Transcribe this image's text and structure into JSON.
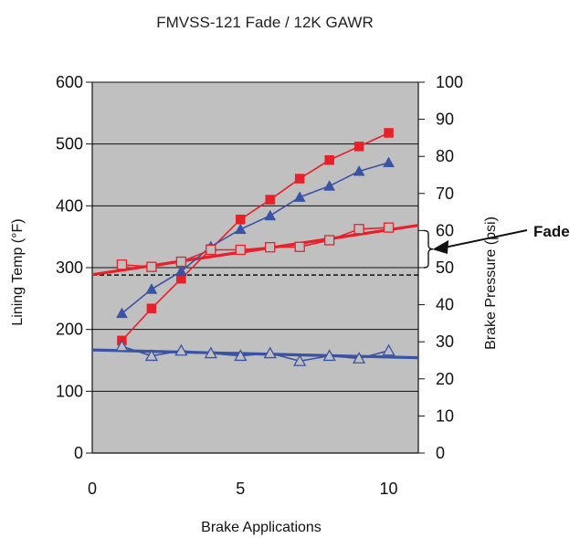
{
  "chart_data": {
    "type": "line",
    "title": "FMVSS-121 Fade / 12K GAWR",
    "xlabel": "Brake Applications",
    "ylabel_left": "Lining Temp (°F)",
    "ylabel_right": "Brake Pressure (psi)",
    "xlim": [
      0,
      11
    ],
    "ylim_left": [
      0,
      600
    ],
    "ylim_right": [
      0,
      100
    ],
    "x_ticks": [
      0,
      5,
      10
    ],
    "y_left_ticks": [
      0,
      100,
      200,
      300,
      400,
      500,
      600
    ],
    "y_right_ticks": [
      0,
      10,
      20,
      30,
      40,
      50,
      60,
      70,
      80,
      90,
      100
    ],
    "plot_background": "#c0c0c0",
    "grid": "horizontal, at left-axis ticks",
    "series": [
      {
        "axis": "left",
        "marker": "filled-square",
        "color": "#e8202a",
        "x": [
          1,
          2,
          3,
          4,
          5,
          6,
          7,
          8,
          9,
          10
        ],
        "values": [
          182,
          234,
          282,
          330,
          378,
          410,
          444,
          474,
          496,
          518
        ]
      },
      {
        "axis": "left",
        "marker": "filled-triangle",
        "color": "#3a53a4",
        "x": [
          1,
          2,
          3,
          4,
          5,
          6,
          7,
          8,
          9,
          10
        ],
        "values": [
          226,
          265,
          294,
          334,
          362,
          384,
          414,
          432,
          456,
          470
        ]
      },
      {
        "axis": "right",
        "marker": "open-square",
        "color": "#e8202a",
        "x": [
          1,
          2,
          3,
          4,
          5,
          6,
          7,
          8,
          9,
          10
        ],
        "values": [
          50.8,
          50.2,
          51.6,
          54.8,
          54.8,
          55.5,
          55.6,
          57.4,
          60.4,
          60.8
        ]
      },
      {
        "axis": "right",
        "marker": "open-triangle",
        "color": "#3a53a4",
        "x": [
          1,
          2,
          3,
          4,
          5,
          6,
          7,
          8,
          9,
          10
        ],
        "values": [
          28.8,
          26.2,
          27.6,
          26.9,
          26.2,
          26.9,
          24.8,
          26.2,
          25.5,
          27.6
        ]
      }
    ],
    "trendlines": [
      {
        "axis": "right",
        "color": "#e8202a",
        "x": [
          0,
          11
        ],
        "values": [
          48.1,
          61.4
        ]
      },
      {
        "axis": "right",
        "color": "#3a53a4",
        "x": [
          0,
          11
        ],
        "values": [
          27.8,
          25.7
        ]
      }
    ],
    "reference_line": {
      "axis": "right",
      "value": 48.0,
      "style": "dashed"
    },
    "annotation": {
      "text": "Fade",
      "bracket_right": [
        50,
        60
      ]
    }
  }
}
